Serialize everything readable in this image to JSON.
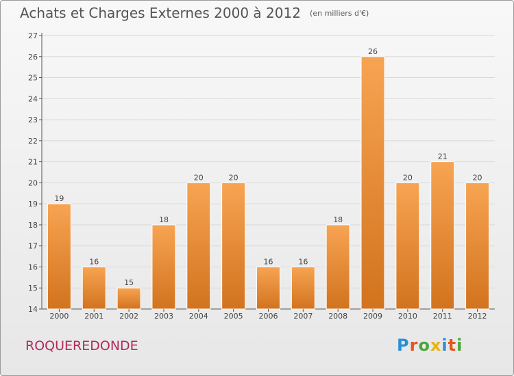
{
  "header": {
    "title": "Achats et Charges Externes 2000 à 2012",
    "unit": "(en milliers d'€)"
  },
  "footer": {
    "commune": "ROQUEREDONDE",
    "logo_text": "Proxiti",
    "logo_colors": [
      "#2a8fd6",
      "#e8541a",
      "#4aa63a",
      "#e6b312",
      "#2a8fd6",
      "#e8541a",
      "#4aa63a"
    ]
  },
  "colors": {
    "bar_top": "#f7a452",
    "bar_bottom": "#d2731e",
    "axis": "#555555",
    "grid": "#d9d9d9",
    "text": "#444444"
  },
  "chart_data": {
    "type": "bar",
    "categories": [
      "2000",
      "2001",
      "2002",
      "2003",
      "2004",
      "2005",
      "2006",
      "2007",
      "2008",
      "2009",
      "2010",
      "2011",
      "2012"
    ],
    "values": [
      19,
      16,
      15,
      18,
      20,
      20,
      16,
      16,
      18,
      26,
      20,
      21,
      20
    ],
    "ylim": [
      14,
      27
    ],
    "yticks": [
      14,
      15,
      16,
      17,
      18,
      19,
      20,
      21,
      22,
      23,
      24,
      25,
      26,
      27
    ],
    "grid": true,
    "data_labels": true
  }
}
